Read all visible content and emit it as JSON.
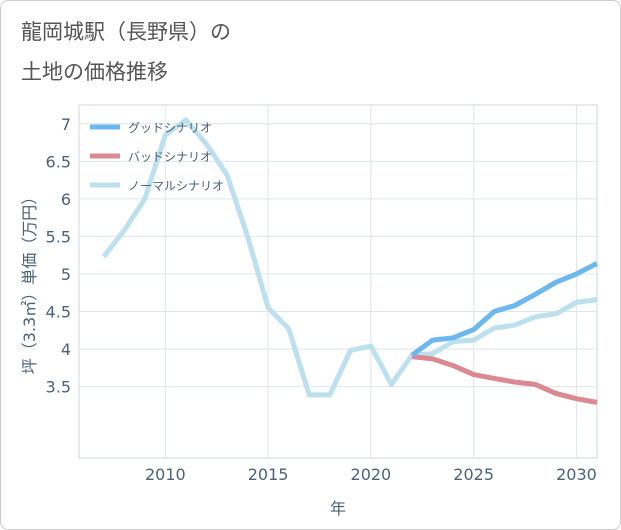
{
  "page": {
    "title_line1": "龍岡城駅（長野県）の",
    "title_line2": "土地の価格推移"
  },
  "chart_data": {
    "type": "line",
    "xlabel": "年",
    "ylabel": "坪（3.3㎡）単価（万円）",
    "xlim": [
      2005.8,
      2031
    ],
    "ylim": [
      2.55,
      7.25
    ],
    "xticks": [
      2010,
      2015,
      2020,
      2025,
      2030
    ],
    "yticks": [
      3.5,
      4,
      4.5,
      5,
      5.5,
      6,
      6.5,
      7
    ],
    "xtick_labels": [
      "2010",
      "2015",
      "2020",
      "2025",
      "2030"
    ],
    "ytick_labels": [
      "3.5",
      "4",
      "4.5",
      "5",
      "5.5",
      "6",
      "6.5",
      "7"
    ],
    "grid": true,
    "legend_position": "top-left",
    "series": [
      {
        "name": "グッドシナリオ",
        "color": "#6cb8ee",
        "x": [
          2022,
          2023,
          2024,
          2025,
          2026,
          2027,
          2028,
          2029,
          2030,
          2031
        ],
        "y": [
          3.92,
          4.12,
          4.15,
          4.26,
          4.5,
          4.58,
          4.73,
          4.89,
          5.0,
          5.14
        ]
      },
      {
        "name": "バッドシナリオ",
        "color": "#db8890",
        "x": [
          2022,
          2023,
          2024,
          2025,
          2026,
          2027,
          2028,
          2029,
          2030,
          2031
        ],
        "y": [
          3.9,
          3.87,
          3.78,
          3.66,
          3.61,
          3.56,
          3.53,
          3.41,
          3.34,
          3.29
        ]
      },
      {
        "name": "ノーマルシナリオ",
        "color": "#bde0ee",
        "x": [
          2007,
          2008,
          2009,
          2010,
          2011,
          2012,
          2013,
          2014,
          2015,
          2016,
          2017,
          2018,
          2019,
          2020,
          2021,
          2022,
          2023,
          2024,
          2025,
          2026,
          2027,
          2028,
          2029,
          2030,
          2031
        ],
        "y": [
          5.23,
          5.58,
          6.0,
          6.85,
          7.05,
          6.73,
          6.32,
          5.5,
          4.55,
          4.27,
          3.39,
          3.39,
          3.98,
          4.04,
          3.53,
          3.92,
          3.94,
          4.1,
          4.12,
          4.28,
          4.32,
          4.43,
          4.47,
          4.62,
          4.66
        ]
      }
    ]
  }
}
